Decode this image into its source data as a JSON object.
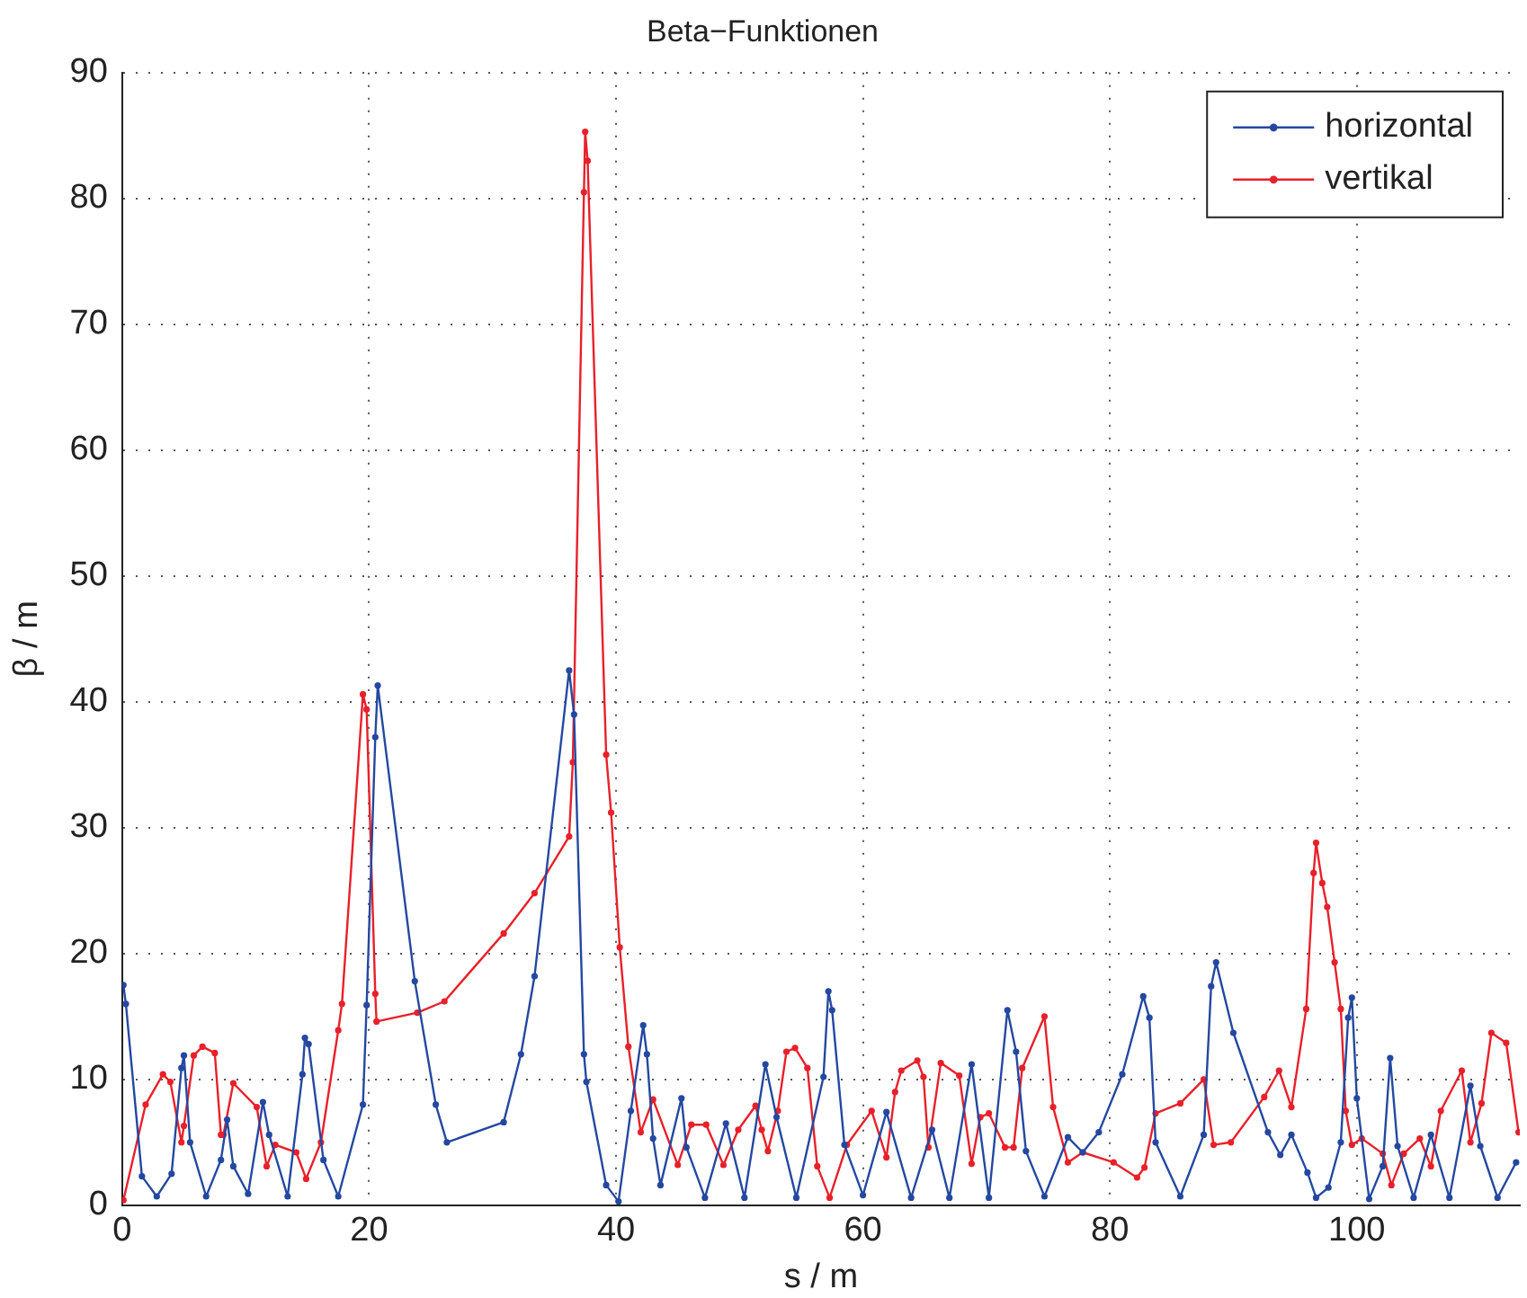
{
  "chart_data": {
    "type": "line",
    "title": "Beta−Funktionen",
    "xlabel": "s / m",
    "ylabel": "β / m",
    "xlim": [
      0,
      113.2
    ],
    "xticks": [
      0,
      20,
      40,
      60,
      80,
      100
    ],
    "ylim": [
      0,
      90
    ],
    "yticks": [
      0,
      10,
      20,
      30,
      40,
      50,
      60,
      70,
      80,
      90
    ],
    "grid": true,
    "legend": "top right",
    "marker": "circle",
    "line_style": "solid",
    "series": [
      {
        "name": "horizontal",
        "color": "#2448a0",
        "x": [
          0.1,
          0.3,
          1.6,
          2.8,
          4,
          4.8,
          5,
          5.5,
          6.8,
          8,
          8.5,
          9,
          10.2,
          11.4,
          11.9,
          13.4,
          14.6,
          14.8,
          15.1,
          16.3,
          17.5,
          19.5,
          19.8,
          20.5,
          20.7,
          23.7,
          25.4,
          26.3,
          30.9,
          32.3,
          33.4,
          36.2,
          36.6,
          37.4,
          37.6,
          39.2,
          40.2,
          41.2,
          42.2,
          42.5,
          43,
          43.6,
          45.3,
          45.7,
          47.2,
          48.9,
          50.4,
          52.1,
          53,
          54.6,
          56.8,
          57.2,
          57.5,
          58.5,
          60,
          61.9,
          63.9,
          65.6,
          67,
          68.8,
          70.2,
          71.7,
          72.4,
          73.2,
          74.7,
          76.6,
          77.8,
          79.1,
          81,
          82.7,
          83.2,
          83.7,
          85.7,
          87.6,
          88.2,
          88.6,
          90,
          92.8,
          93.8,
          94.7,
          96,
          96.7,
          97.7,
          98.7,
          99.3,
          99.6,
          100,
          101,
          102.1,
          102.7,
          103.3,
          104.6,
          106,
          107.5,
          109.2,
          110,
          111.4,
          112.9
        ],
        "values": [
          17.5,
          16,
          2.3,
          0.7,
          2.5,
          10.9,
          11.9,
          5,
          0.7,
          3.6,
          6.8,
          3.1,
          0.9,
          8.2,
          5.6,
          0.7,
          10.4,
          13.3,
          12.8,
          3.6,
          0.7,
          8,
          15.9,
          37.2,
          41.3,
          17.8,
          8,
          5,
          6.6,
          12,
          18.2,
          42.5,
          39,
          12,
          9.8,
          1.6,
          0.3,
          7.5,
          14.3,
          12,
          5.3,
          1.6,
          8.5,
          4.6,
          0.6,
          6.5,
          0.6,
          11.2,
          7,
          0.6,
          10.2,
          17,
          15.5,
          4.8,
          0.8,
          7.4,
          0.6,
          6,
          0.6,
          11.2,
          0.6,
          15.5,
          12.2,
          4.3,
          0.7,
          5.4,
          4.2,
          5.8,
          10.4,
          16.6,
          14.9,
          5,
          0.7,
          5.6,
          17.4,
          19.3,
          13.7,
          5.8,
          4,
          5.6,
          2.6,
          0.6,
          1.4,
          5,
          14.9,
          16.5,
          8.5,
          0.5,
          3.1,
          11.7,
          4.7,
          0.6,
          5.6,
          0.6,
          9.5,
          4.7,
          0.6,
          3.4
        ]
      },
      {
        "name": "vertikal",
        "color": "#e8202a",
        "x": [
          0.1,
          1.9,
          3.3,
          3.9,
          4.8,
          5,
          5.8,
          6.5,
          7.5,
          8,
          8.2,
          9,
          10.9,
          11.7,
          12.4,
          14.1,
          14.9,
          16.1,
          17.5,
          17.8,
          19.5,
          19.8,
          20.5,
          20.6,
          23.9,
          26.1,
          30.9,
          33.4,
          36.2,
          36.5,
          37.4,
          37.5,
          37.7,
          39.2,
          39.6,
          40.3,
          41,
          42,
          43,
          45,
          46.1,
          47.3,
          48.7,
          49.9,
          51.3,
          51.8,
          52.3,
          53.1,
          53.8,
          54.5,
          55.5,
          56.3,
          57.3,
          58.7,
          60.7,
          61.9,
          62.6,
          63.1,
          64.4,
          64.9,
          65.3,
          66.3,
          67.8,
          68.8,
          69.5,
          70.2,
          71.5,
          72.2,
          72.9,
          74.7,
          75.4,
          76.6,
          77.8,
          80.3,
          82.2,
          82.8,
          83.7,
          85.7,
          87.6,
          88.4,
          89.8,
          92.5,
          93.7,
          94.7,
          95.9,
          96.5,
          96.7,
          97.2,
          97.6,
          98.2,
          98.7,
          99.1,
          99.6,
          100.4,
          102.1,
          102.8,
          103.8,
          105.1,
          106,
          106.8,
          108.5,
          109.2,
          110.1,
          110.9,
          112.1,
          113.1
        ],
        "values": [
          0.4,
          8,
          10.4,
          9.8,
          5,
          6.3,
          11.9,
          12.6,
          12.1,
          5.6,
          5.6,
          9.7,
          7.8,
          3.1,
          4.8,
          4.2,
          2.1,
          5,
          13.9,
          16,
          40.6,
          39.4,
          16.8,
          14.6,
          15.3,
          16.2,
          21.6,
          24.8,
          29.3,
          35.2,
          80.5,
          85.3,
          83,
          35.8,
          31.2,
          20.5,
          12.6,
          5.8,
          8.4,
          3.2,
          6.4,
          6.4,
          3.2,
          6,
          7.9,
          6,
          4.3,
          7.5,
          12.2,
          12.5,
          10.9,
          3.1,
          0.6,
          4.8,
          7.5,
          3.8,
          9,
          10.7,
          11.5,
          10.2,
          4.6,
          11.3,
          10.3,
          3.3,
          7,
          7.3,
          4.6,
          4.6,
          10.9,
          15,
          7.8,
          3.4,
          4.2,
          3.4,
          2.2,
          3,
          7.3,
          8.1,
          10,
          4.8,
          5,
          8.6,
          10.7,
          7.8,
          15.6,
          26.4,
          28.8,
          25.6,
          23.7,
          19.3,
          15.6,
          7.5,
          4.8,
          5.3,
          4.1,
          1.6,
          4.1,
          5.3,
          3.1,
          7.5,
          10.7,
          5,
          8.1,
          13.7,
          12.9,
          5.8
        ]
      }
    ]
  }
}
